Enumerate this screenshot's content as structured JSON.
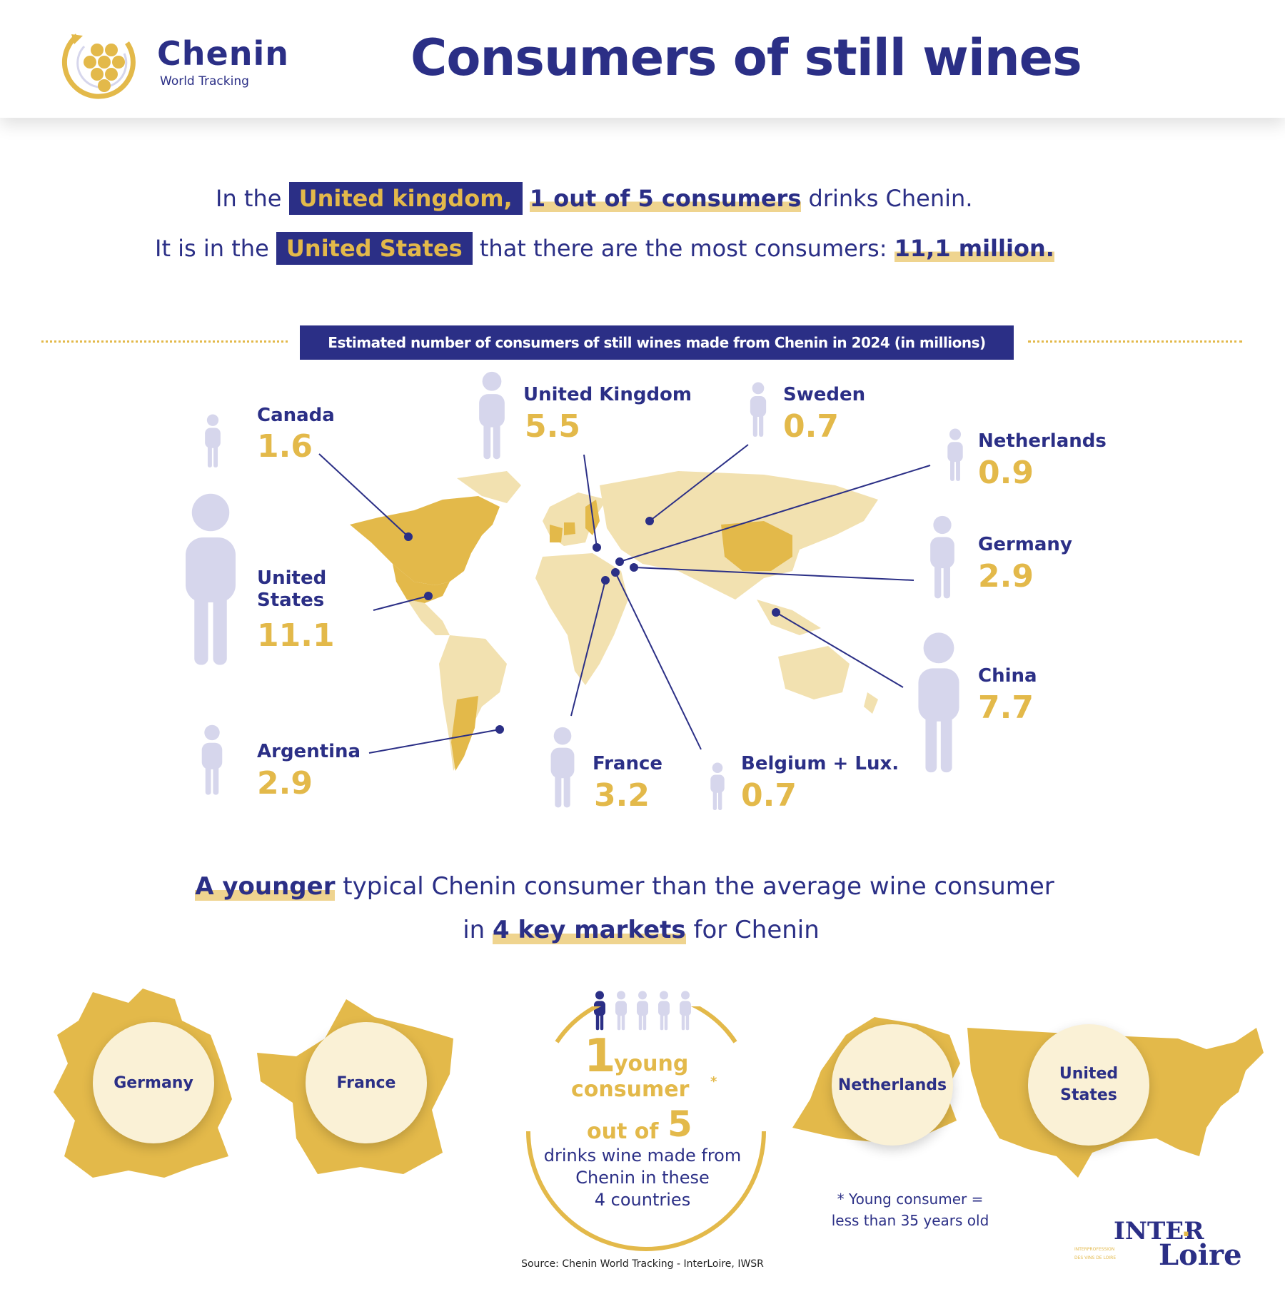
{
  "logo": {
    "wordmark": "Chenin",
    "sub": "World Tracking"
  },
  "title": "Consumers of still wines",
  "headline": {
    "line1_pre": "In the",
    "line1_country": "United kingdom,",
    "line1_stat": "1 out of  5 consumers",
    "line1_post": "drinks Chenin.",
    "line2_pre": "It is in the",
    "line2_country": "United States",
    "line2_mid": "that there are the most consumers:",
    "line2_stat": "11,1 million."
  },
  "map_banner": "Estimated number of consumers of still wines made from Chenin in 2024 (in millions)",
  "countries": [
    {
      "name": "Canada",
      "value": "1.6"
    },
    {
      "name": "United Kingdom",
      "value": "5.5"
    },
    {
      "name": "Sweden",
      "value": "0.7"
    },
    {
      "name": "Netherlands",
      "value": "0.9"
    },
    {
      "name": "Germany",
      "value": "2.9"
    },
    {
      "name": "United States",
      "value": "11.1"
    },
    {
      "name": "China",
      "value": "7.7"
    },
    {
      "name": "Argentina",
      "value": "2.9"
    },
    {
      "name": "France",
      "value": "3.2"
    },
    {
      "name": "Belgium + Lux.",
      "value": "0.7"
    }
  ],
  "section2": {
    "line1_strong": "A younger",
    "line1_rest": "typical Chenin consumer than the average wine consumer",
    "line2_pre": "in",
    "line2_strong": "4 key markets",
    "line2_post": "for Chenin"
  },
  "markets": [
    "Germany",
    "France",
    "Netherlands",
    "United States"
  ],
  "young_stat": {
    "number": "1",
    "l1": "young",
    "l2": "consumer",
    "asterisk": "*",
    "l3": "out of",
    "number2": "5",
    "desc1": "drinks wine made from",
    "desc2": "Chenin in these",
    "desc3": "4 countries"
  },
  "footnote": {
    "l1": "* Young consumer =",
    "l2": "less than 35 years old"
  },
  "source": "Source: Chenin World Tracking - InterLoire, IWSR",
  "brand": {
    "top": "INTER",
    "bottom": "Loire",
    "small1": "INTERPROFESSION",
    "small2": "DES VINS DE LOIRE"
  },
  "colors": {
    "navy": "#2b2f86",
    "gold": "#e3b94a",
    "lavender": "#d6d6ec",
    "map_light": "#f2e1b0",
    "map_highlight": "#e3b94a"
  }
}
